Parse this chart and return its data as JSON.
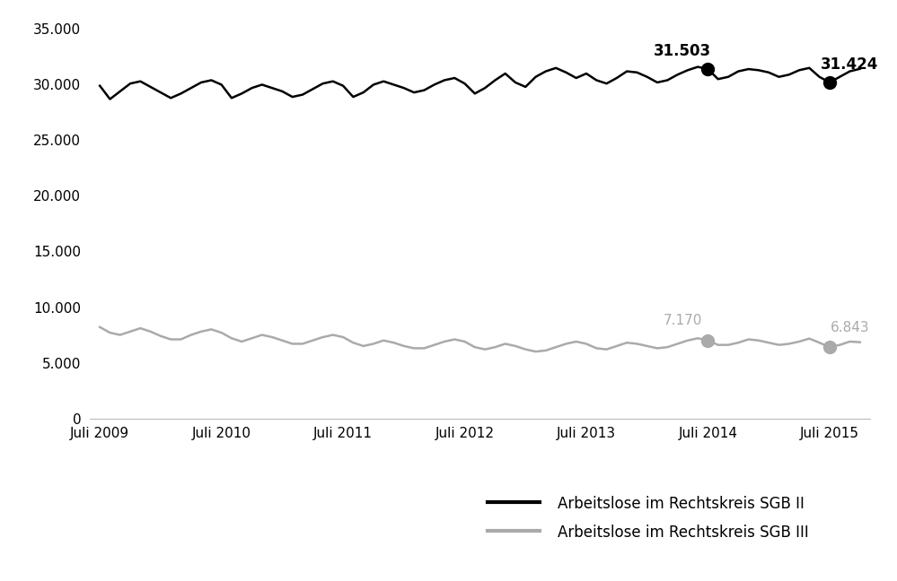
{
  "sgb2_values": [
    29900,
    28700,
    29400,
    30100,
    30300,
    29800,
    29300,
    28800,
    29200,
    29700,
    30200,
    30400,
    30000,
    28800,
    29200,
    29700,
    30000,
    29700,
    29400,
    28900,
    29100,
    29600,
    30100,
    30300,
    29900,
    28900,
    29300,
    30000,
    30300,
    30000,
    29700,
    29300,
    29500,
    30000,
    30400,
    30600,
    30100,
    29200,
    29700,
    30400,
    31000,
    30200,
    29800,
    30700,
    31200,
    31500,
    31100,
    30600,
    31000,
    30400,
    30100,
    30600,
    31200,
    31100,
    30700,
    30200,
    30400,
    30900,
    31300,
    31600,
    31400,
    30500,
    30700,
    31200,
    31400,
    31300,
    31100,
    30700,
    30900,
    31300,
    31503,
    30700,
    30200,
    30700,
    31200,
    31424
  ],
  "sgb3_values": [
    8200,
    7700,
    7500,
    7800,
    8100,
    7800,
    7400,
    7100,
    7100,
    7500,
    7800,
    8000,
    7700,
    7200,
    6900,
    7200,
    7500,
    7300,
    7000,
    6700,
    6700,
    7000,
    7300,
    7500,
    7300,
    6800,
    6500,
    6700,
    7000,
    6800,
    6500,
    6300,
    6300,
    6600,
    6900,
    7100,
    6900,
    6400,
    6200,
    6400,
    6700,
    6500,
    6200,
    6000,
    6100,
    6400,
    6700,
    6900,
    6700,
    6300,
    6200,
    6500,
    6800,
    6700,
    6500,
    6300,
    6400,
    6700,
    7000,
    7200,
    7000,
    6600,
    6600,
    6800,
    7100,
    7000,
    6800,
    6600,
    6700,
    6900,
    7170,
    6800,
    6400,
    6600,
    6900,
    6843
  ],
  "x_tick_labels": [
    "Juli 2009",
    "Juli 2010",
    "Juli 2011",
    "Juli 2012",
    "Juli 2013",
    "Juli 2014",
    "Juli 2015"
  ],
  "x_tick_positions": [
    0,
    12,
    24,
    36,
    48,
    60,
    72
  ],
  "july2014_idx": 60,
  "july2015_idx": 72,
  "sgb2_color": "#000000",
  "sgb3_color": "#aaaaaa",
  "ylim": [
    0,
    35000
  ],
  "yticks": [
    0,
    5000,
    10000,
    15000,
    20000,
    25000,
    30000,
    35000
  ],
  "legend_sgb2": "Arbeitslose im Rechtskreis SGB II",
  "legend_sgb3": "Arbeitslose im Rechtskreis SGB III",
  "background_color": "#ffffff",
  "line_width": 1.8
}
